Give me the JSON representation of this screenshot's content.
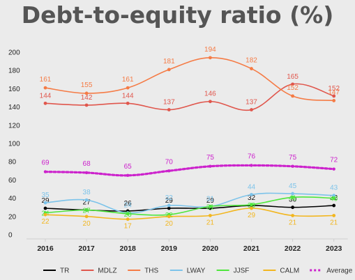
{
  "chart_data": {
    "type": "line",
    "title": "Debt-to-equity ratio (%)",
    "xlabel": "",
    "ylabel": "",
    "ylim": [
      0,
      200
    ],
    "yticks": [
      0,
      20,
      40,
      60,
      80,
      100,
      120,
      140,
      160,
      180,
      200
    ],
    "x": [
      "2016",
      "2017",
      "2018",
      "2019",
      "2020",
      "2021",
      "2022",
      "2023"
    ],
    "grid": false,
    "legend_position": "bottom",
    "series": [
      {
        "name": "TR",
        "color": "#000000",
        "dashed": false,
        "values": [
          29,
          27,
          26,
          29,
          29,
          32,
          30,
          32
        ]
      },
      {
        "name": "MDLZ",
        "color": "#e0564c",
        "dashed": false,
        "values": [
          144,
          142,
          144,
          137,
          146,
          137,
          165,
          152
        ]
      },
      {
        "name": "THS",
        "color": "#f57b45",
        "dashed": false,
        "values": [
          161,
          155,
          161,
          181,
          194,
          182,
          152,
          147
        ]
      },
      {
        "name": "LWAY",
        "color": "#7cc3ea",
        "dashed": false,
        "values": [
          35,
          38,
          24,
          32,
          31,
          44,
          45,
          43
        ]
      },
      {
        "name": "JJSF",
        "color": "#4ee63b",
        "dashed": false,
        "values": [
          24,
          27,
          23,
          22,
          31,
          33,
          41,
          40
        ]
      },
      {
        "name": "CALM",
        "color": "#f2b61f",
        "dashed": false,
        "values": [
          22,
          20,
          17,
          20,
          21,
          29,
          21,
          21
        ]
      },
      {
        "name": "Average",
        "color": "#cc22cc",
        "dashed": true,
        "values": [
          69,
          68,
          65,
          70,
          75,
          76,
          75,
          72
        ]
      }
    ]
  }
}
